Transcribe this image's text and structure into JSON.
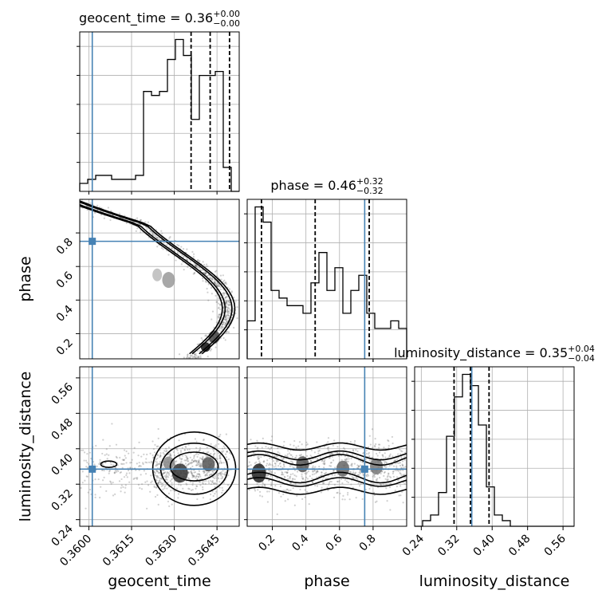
{
  "chart_data": {
    "type": "corner",
    "truth_color": "#4682b4",
    "params": [
      {
        "name": "geocent_time",
        "title_prefix": "geocent_time = ",
        "title_value": "0.36",
        "title_plus": "+0.00",
        "title_minus": "−0.00",
        "range": [
          0.35968,
          0.36528
        ],
        "ticks": [
          0.36,
          0.3615,
          0.363,
          0.3645
        ],
        "tick_labels": [
          "0.3600",
          "0.3615",
          "0.3630",
          "0.3645"
        ],
        "truth": 0.36012,
        "quantiles": [
          0.36359,
          0.36426,
          0.36494
        ],
        "hist_edges_start": 0.35968,
        "hist_bin_width": 0.00028,
        "hist_counts": [
          2,
          3,
          4,
          4,
          3,
          3,
          3,
          4,
          25,
          24,
          25,
          33,
          38,
          34,
          18,
          29,
          29,
          30,
          6,
          0
        ]
      },
      {
        "name": "phase",
        "title_prefix": "phase = ",
        "title_value": "0.46",
        "title_plus": "+0.32",
        "title_minus": "−0.32",
        "range": [
          0.05,
          1.0
        ],
        "ticks": [
          0.2,
          0.4,
          0.6,
          0.8
        ],
        "tick_labels": [
          "0.2",
          "0.4",
          "0.6",
          "0.8"
        ],
        "truth": 0.75,
        "quantiles": [
          0.135,
          0.455,
          0.777
        ],
        "hist_edges_start": 0.05,
        "hist_bin_width": 0.0475,
        "hist_counts": [
          5,
          20,
          18,
          9,
          8,
          7,
          7,
          6,
          10,
          14,
          9,
          12,
          6,
          9,
          11,
          6,
          4,
          4,
          5,
          4
        ]
      },
      {
        "name": "luminosity_distance",
        "title_prefix": "luminosity_distance = ",
        "title_value": "0.35",
        "title_plus": "+0.04",
        "title_minus": "−0.04",
        "range": [
          0.225,
          0.585
        ],
        "ticks": [
          0.24,
          0.32,
          0.4,
          0.48,
          0.56
        ],
        "tick_labels": [
          "0.24",
          "0.32",
          "0.40",
          "0.48",
          "0.56"
        ],
        "truth": 0.354,
        "quantiles": [
          0.314,
          0.351,
          0.393
        ],
        "hist_edges_start": 0.225,
        "hist_bin_width": 0.018,
        "hist_counts": [
          0,
          1,
          2,
          6,
          16,
          23,
          27,
          25,
          18,
          7,
          2,
          1,
          0,
          0,
          0,
          0,
          0,
          0,
          0,
          0
        ]
      }
    ],
    "grid": true
  }
}
